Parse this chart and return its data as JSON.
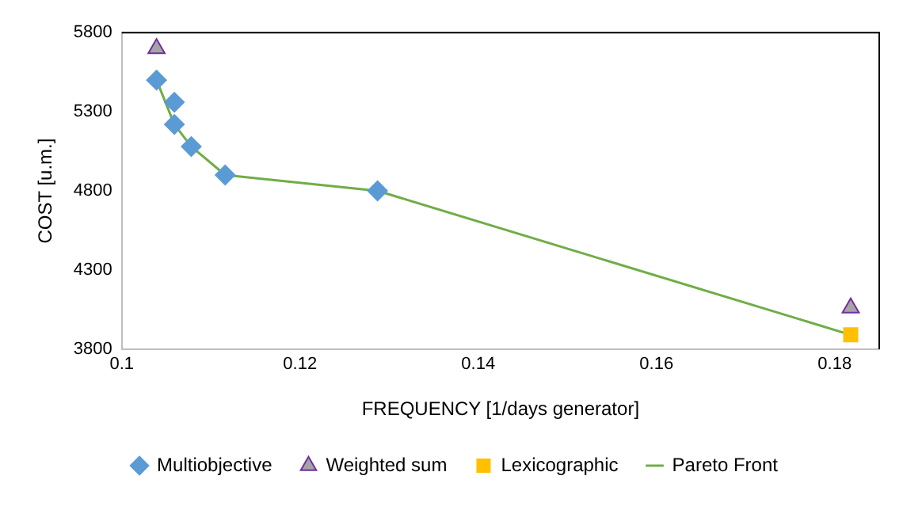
{
  "chart_data": {
    "type": "scatter",
    "xlabel": "FREQUENCY [1/days generator]",
    "ylabel": "COST [u.m.]",
    "xlim": [
      0.1,
      0.185
    ],
    "xticks": [
      0.1,
      0.12,
      0.14,
      0.16,
      0.18
    ],
    "ylim": [
      3800,
      5800
    ],
    "yticks": [
      3800,
      4300,
      4800,
      5300,
      5800
    ],
    "grid": false,
    "legend": "bottom",
    "series": [
      {
        "name": "Multiobjective",
        "marker": "diamond",
        "color": "#5b9bd5",
        "x": [
          0.1039,
          0.1059,
          0.1059,
          0.1078,
          0.1116,
          0.1287
        ],
        "values": [
          5500,
          5360,
          5220,
          5080,
          4900,
          4800
        ]
      },
      {
        "name": "Weighted sum",
        "marker": "triangle",
        "color": "#a5a5a5",
        "x": [
          0.1039,
          0.1818
        ],
        "values": [
          5700,
          4060
        ]
      },
      {
        "name": "Lexicographic",
        "marker": "square",
        "color": "#ffc000",
        "x": [
          0.1818
        ],
        "values": [
          3890
        ]
      },
      {
        "name": "Pareto Front",
        "type": "line",
        "marker": "none",
        "color": "#70ad47",
        "x": [
          0.1039,
          0.1059,
          0.1078,
          0.1116,
          0.1287,
          0.1818
        ],
        "values": [
          5500,
          5220,
          5080,
          4900,
          4800,
          3890
        ]
      }
    ]
  }
}
